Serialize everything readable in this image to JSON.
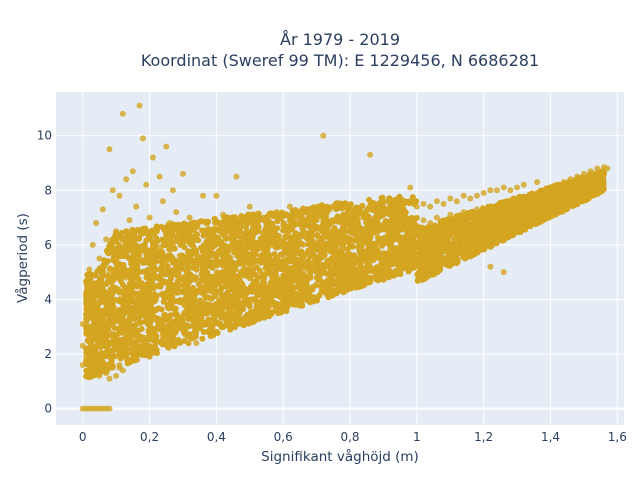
{
  "chart_data": {
    "type": "scatter",
    "title_line1": "År 1979 - 2019",
    "title_line2": "Koordinat (Sweref 99 TM): E 1229456, N 6686281",
    "xlabel": "Signifikant våghöjd (m)",
    "ylabel": "Vågperiod (s)",
    "xlim": [
      -0.08,
      1.62
    ],
    "ylim": [
      -0.6,
      11.6
    ],
    "x_ticks": [
      {
        "value": 0,
        "label": "0"
      },
      {
        "value": 0.2,
        "label": "0,2"
      },
      {
        "value": 0.4,
        "label": "0,4"
      },
      {
        "value": 0.6,
        "label": "0,6"
      },
      {
        "value": 0.8,
        "label": "0,8"
      },
      {
        "value": 1.0,
        "label": "1"
      },
      {
        "value": 1.2,
        "label": "1,2"
      },
      {
        "value": 1.4,
        "label": "1,4"
      },
      {
        "value": 1.6,
        "label": "1,6"
      }
    ],
    "y_ticks": [
      {
        "value": 0,
        "label": "0"
      },
      {
        "value": 2,
        "label": "2"
      },
      {
        "value": 4,
        "label": "4"
      },
      {
        "value": 6,
        "label": "6"
      },
      {
        "value": 8,
        "label": "8"
      },
      {
        "value": 10,
        "label": "10"
      }
    ],
    "grid": true,
    "series": [
      {
        "color": "#d4a520",
        "points": [
          [
            0.0,
            0.0
          ],
          [
            0.01,
            0.0
          ],
          [
            0.02,
            0.0
          ],
          [
            0.03,
            0.0
          ],
          [
            0.04,
            0.0
          ],
          [
            0.05,
            0.0
          ],
          [
            0.06,
            0.0
          ],
          [
            0.07,
            0.0
          ],
          [
            0.08,
            0.0
          ],
          [
            0.0,
            1.6
          ],
          [
            0.0,
            2.3
          ],
          [
            0.0,
            3.1
          ],
          [
            0.01,
            1.9
          ],
          [
            0.01,
            4.2
          ],
          [
            0.02,
            2.6
          ],
          [
            0.02,
            5.1
          ],
          [
            0.03,
            1.4
          ],
          [
            0.03,
            3.5
          ],
          [
            0.03,
            6.0
          ],
          [
            0.04,
            2.0
          ],
          [
            0.04,
            4.6
          ],
          [
            0.04,
            6.8
          ],
          [
            0.05,
            1.2
          ],
          [
            0.05,
            3.0
          ],
          [
            0.05,
            5.5
          ],
          [
            0.06,
            2.4
          ],
          [
            0.06,
            4.0
          ],
          [
            0.06,
            7.3
          ],
          [
            0.07,
            1.3
          ],
          [
            0.07,
            3.6
          ],
          [
            0.07,
            6.2
          ],
          [
            0.08,
            1.1
          ],
          [
            0.08,
            2.8
          ],
          [
            0.08,
            5.0
          ],
          [
            0.08,
            9.5
          ],
          [
            0.09,
            1.5
          ],
          [
            0.09,
            4.4
          ],
          [
            0.09,
            8.0
          ],
          [
            0.1,
            1.2
          ],
          [
            0.1,
            3.2
          ],
          [
            0.1,
            6.5
          ],
          [
            0.11,
            1.6
          ],
          [
            0.11,
            5.2
          ],
          [
            0.11,
            7.8
          ],
          [
            0.12,
            1.4
          ],
          [
            0.12,
            3.9
          ],
          [
            0.12,
            10.8
          ],
          [
            0.13,
            2.0
          ],
          [
            0.13,
            4.8
          ],
          [
            0.13,
            8.4
          ],
          [
            0.14,
            1.8
          ],
          [
            0.14,
            3.4
          ],
          [
            0.14,
            6.9
          ],
          [
            0.15,
            2.2
          ],
          [
            0.15,
            5.6
          ],
          [
            0.15,
            8.7
          ],
          [
            0.16,
            1.9
          ],
          [
            0.16,
            4.1
          ],
          [
            0.16,
            7.4
          ],
          [
            0.17,
            2.4
          ],
          [
            0.17,
            5.0
          ],
          [
            0.17,
            11.1
          ],
          [
            0.18,
            2.1
          ],
          [
            0.18,
            3.7
          ],
          [
            0.18,
            9.9
          ],
          [
            0.19,
            2.6
          ],
          [
            0.19,
            5.8
          ],
          [
            0.19,
            8.2
          ],
          [
            0.2,
            2.3
          ],
          [
            0.2,
            4.4
          ],
          [
            0.2,
            7.0
          ],
          [
            0.21,
            2.8
          ],
          [
            0.21,
            5.3
          ],
          [
            0.21,
            9.2
          ],
          [
            0.22,
            2.5
          ],
          [
            0.22,
            4.0
          ],
          [
            0.22,
            6.6
          ],
          [
            0.23,
            2.9
          ],
          [
            0.23,
            5.9
          ],
          [
            0.23,
            8.5
          ],
          [
            0.24,
            2.7
          ],
          [
            0.24,
            4.6
          ],
          [
            0.24,
            7.6
          ],
          [
            0.25,
            3.0
          ],
          [
            0.25,
            5.4
          ],
          [
            0.25,
            9.6
          ],
          [
            0.26,
            2.8
          ],
          [
            0.26,
            4.2
          ],
          [
            0.26,
            6.8
          ],
          [
            0.27,
            3.2
          ],
          [
            0.27,
            6.0
          ],
          [
            0.27,
            8.0
          ],
          [
            0.28,
            3.0
          ],
          [
            0.28,
            4.9
          ],
          [
            0.28,
            7.2
          ],
          [
            0.29,
            3.3
          ],
          [
            0.29,
            5.6
          ],
          [
            0.3,
            3.1
          ],
          [
            0.3,
            4.5
          ],
          [
            0.3,
            6.6
          ],
          [
            0.3,
            8.6
          ],
          [
            0.32,
            3.4
          ],
          [
            0.32,
            5.2
          ],
          [
            0.32,
            7.0
          ],
          [
            0.34,
            3.6
          ],
          [
            0.34,
            4.8
          ],
          [
            0.34,
            6.4
          ],
          [
            0.36,
            3.5
          ],
          [
            0.36,
            5.5
          ],
          [
            0.36,
            7.8
          ],
          [
            0.38,
            3.8
          ],
          [
            0.38,
            4.6
          ],
          [
            0.38,
            6.2
          ],
          [
            0.4,
            3.7
          ],
          [
            0.4,
            5.0
          ],
          [
            0.4,
            6.8
          ],
          [
            0.4,
            7.8
          ],
          [
            0.42,
            3.9
          ],
          [
            0.42,
            5.4
          ],
          [
            0.42,
            7.1
          ],
          [
            0.44,
            4.0
          ],
          [
            0.44,
            5.2
          ],
          [
            0.44,
            6.5
          ],
          [
            0.46,
            4.1
          ],
          [
            0.46,
            5.6
          ],
          [
            0.46,
            8.5
          ],
          [
            0.48,
            4.2
          ],
          [
            0.48,
            5.3
          ],
          [
            0.48,
            6.9
          ],
          [
            0.5,
            4.3
          ],
          [
            0.5,
            5.6
          ],
          [
            0.5,
            7.4
          ],
          [
            0.52,
            4.4
          ],
          [
            0.52,
            5.4
          ],
          [
            0.52,
            6.6
          ],
          [
            0.54,
            4.5
          ],
          [
            0.54,
            5.8
          ],
          [
            0.54,
            7.0
          ],
          [
            0.56,
            4.5
          ],
          [
            0.56,
            5.5
          ],
          [
            0.56,
            6.8
          ],
          [
            0.58,
            4.6
          ],
          [
            0.58,
            5.9
          ],
          [
            0.58,
            7.2
          ],
          [
            0.6,
            4.7
          ],
          [
            0.6,
            5.6
          ],
          [
            0.6,
            6.7
          ],
          [
            0.62,
            4.8
          ],
          [
            0.62,
            5.9
          ],
          [
            0.62,
            7.4
          ],
          [
            0.64,
            4.9
          ],
          [
            0.64,
            5.7
          ],
          [
            0.64,
            6.9
          ],
          [
            0.66,
            5.0
          ],
          [
            0.66,
            6.0
          ],
          [
            0.66,
            7.2
          ],
          [
            0.68,
            5.0
          ],
          [
            0.68,
            5.8
          ],
          [
            0.68,
            7.0
          ],
          [
            0.7,
            5.1
          ],
          [
            0.7,
            6.1
          ],
          [
            0.7,
            6.9
          ],
          [
            0.72,
            5.1
          ],
          [
            0.72,
            6.0
          ],
          [
            0.72,
            10.0
          ],
          [
            0.74,
            5.2
          ],
          [
            0.74,
            6.2
          ],
          [
            0.74,
            7.3
          ],
          [
            0.76,
            5.3
          ],
          [
            0.76,
            6.1
          ],
          [
            0.76,
            7.0
          ],
          [
            0.78,
            5.4
          ],
          [
            0.78,
            6.3
          ],
          [
            0.78,
            7.1
          ],
          [
            0.8,
            5.4
          ],
          [
            0.8,
            6.2
          ],
          [
            0.8,
            7.0
          ],
          [
            0.82,
            5.5
          ],
          [
            0.82,
            6.4
          ],
          [
            0.82,
            7.2
          ],
          [
            0.84,
            5.5
          ],
          [
            0.84,
            6.3
          ],
          [
            0.84,
            7.0
          ],
          [
            0.86,
            5.6
          ],
          [
            0.86,
            6.5
          ],
          [
            0.86,
            9.3
          ],
          [
            0.88,
            5.7
          ],
          [
            0.88,
            6.4
          ],
          [
            0.88,
            7.1
          ],
          [
            0.9,
            5.7
          ],
          [
            0.9,
            6.6
          ],
          [
            0.9,
            7.3
          ],
          [
            0.92,
            5.8
          ],
          [
            0.92,
            6.5
          ],
          [
            0.92,
            7.2
          ],
          [
            0.94,
            5.9
          ],
          [
            0.94,
            6.7
          ],
          [
            0.94,
            7.4
          ],
          [
            0.96,
            5.9
          ],
          [
            0.96,
            6.6
          ],
          [
            0.96,
            7.3
          ],
          [
            0.98,
            6.0
          ],
          [
            0.98,
            6.8
          ],
          [
            0.98,
            8.1
          ],
          [
            1.0,
            6.0
          ],
          [
            1.0,
            6.7
          ],
          [
            1.0,
            7.4
          ],
          [
            1.02,
            6.1
          ],
          [
            1.02,
            6.9
          ],
          [
            1.02,
            7.5
          ],
          [
            1.04,
            6.2
          ],
          [
            1.04,
            6.8
          ],
          [
            1.04,
            7.4
          ],
          [
            1.06,
            6.2
          ],
          [
            1.06,
            7.0
          ],
          [
            1.06,
            7.6
          ],
          [
            1.08,
            6.3
          ],
          [
            1.08,
            6.9
          ],
          [
            1.08,
            7.5
          ],
          [
            1.1,
            6.4
          ],
          [
            1.1,
            7.1
          ],
          [
            1.1,
            7.7
          ],
          [
            1.12,
            6.5
          ],
          [
            1.12,
            7.0
          ],
          [
            1.12,
            7.6
          ],
          [
            1.14,
            6.5
          ],
          [
            1.14,
            7.2
          ],
          [
            1.14,
            7.8
          ],
          [
            1.16,
            6.6
          ],
          [
            1.16,
            7.1
          ],
          [
            1.16,
            7.7
          ],
          [
            1.18,
            6.7
          ],
          [
            1.18,
            7.3
          ],
          [
            1.18,
            7.8
          ],
          [
            1.2,
            6.8
          ],
          [
            1.2,
            7.3
          ],
          [
            1.2,
            7.9
          ],
          [
            1.22,
            6.8
          ],
          [
            1.22,
            7.4
          ],
          [
            1.22,
            8.0
          ],
          [
            1.24,
            6.9
          ],
          [
            1.24,
            7.4
          ],
          [
            1.24,
            8.0
          ],
          [
            1.26,
            7.0
          ],
          [
            1.26,
            7.5
          ],
          [
            1.26,
            8.1
          ],
          [
            1.28,
            7.0
          ],
          [
            1.28,
            7.6
          ],
          [
            1.28,
            8.0
          ],
          [
            1.3,
            7.1
          ],
          [
            1.3,
            7.6
          ],
          [
            1.3,
            8.1
          ],
          [
            1.32,
            7.2
          ],
          [
            1.32,
            7.7
          ],
          [
            1.32,
            8.2
          ],
          [
            1.34,
            7.2
          ],
          [
            1.34,
            7.8
          ],
          [
            1.36,
            7.3
          ],
          [
            1.36,
            7.9
          ],
          [
            1.36,
            8.3
          ],
          [
            1.38,
            7.4
          ],
          [
            1.38,
            8.0
          ],
          [
            1.4,
            7.5
          ],
          [
            1.4,
            8.1
          ],
          [
            1.42,
            7.6
          ],
          [
            1.42,
            8.2
          ],
          [
            1.44,
            7.6
          ],
          [
            1.44,
            8.3
          ],
          [
            1.46,
            7.8
          ],
          [
            1.46,
            8.4
          ],
          [
            1.48,
            8.0
          ],
          [
            1.48,
            8.5
          ],
          [
            1.5,
            8.1
          ],
          [
            1.5,
            8.6
          ],
          [
            1.52,
            8.3
          ],
          [
            1.52,
            8.7
          ],
          [
            1.54,
            8.5
          ],
          [
            1.54,
            8.8
          ],
          [
            1.56,
            8.6
          ],
          [
            1.56,
            8.85
          ],
          [
            1.57,
            8.8
          ],
          [
            1.26,
            5.0
          ],
          [
            1.22,
            5.2
          ],
          [
            0.47,
            4.4
          ],
          [
            0.56,
            3.8
          ],
          [
            0.34,
            2.4
          ],
          [
            0.42,
            3.0
          ],
          [
            0.2,
            1.9
          ],
          [
            0.11,
            1.5
          ]
        ]
      }
    ]
  }
}
